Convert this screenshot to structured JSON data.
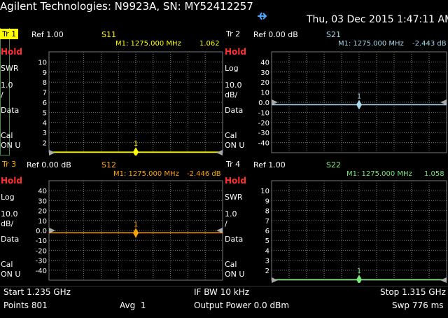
{
  "header": {
    "title": "Agilent Technologies: N9923A, SN: MY52412257",
    "datetime": "Thu, 03 Dec 2015 1:47:11 AM"
  },
  "colors": {
    "s11": "#ffff00",
    "s21": "#a8d8e8",
    "s12": "#ffa500",
    "s22": "#78e878",
    "hold": "#ff3030",
    "grid": "#888888",
    "active_tab": "#ffff00"
  },
  "panels": [
    {
      "trace": "Tr 1",
      "active": true,
      "hold": "Hold",
      "format": "SWR",
      "scale": "1.0",
      "scale_unit": "/",
      "data": "Data",
      "cal": "Cal",
      "cal_status": "ON U",
      "ref": "Ref 1.00",
      "param": "S11",
      "marker": "M1: 1275.000 MHz",
      "marker_value": "1.062",
      "marker_num": "1",
      "y_labels": [
        "10",
        "9",
        "8",
        "7",
        "6",
        "5",
        "4",
        "3",
        "2"
      ],
      "y_min": 1,
      "y_max": 11,
      "trace_value": 1.06,
      "marker_data_value": 1.062,
      "color": "#ffff00"
    },
    {
      "trace": "Tr 2",
      "active": false,
      "hold": "Hold",
      "format": "Log",
      "scale": "10.0",
      "scale_unit": "dB/",
      "data": "Data",
      "cal": "Cal",
      "cal_status": "ON U",
      "ref": "Ref 0.00 dB",
      "param": "S21",
      "marker": "M1: 1275.000 MHz",
      "marker_value": "-2.443 dB",
      "marker_num": "1",
      "y_labels": [
        "40",
        "30",
        "20",
        "10",
        "0.0",
        "-10",
        "-20",
        "-30",
        "-40"
      ],
      "y_min": -50,
      "y_max": 50,
      "trace_value": -2.4,
      "marker_data_value": -2.443,
      "color": "#a8d8e8"
    },
    {
      "trace": "Tr 3",
      "active": false,
      "hold": "Hold",
      "format": "Log",
      "scale": "10.0",
      "scale_unit": "dB/",
      "data": "Data",
      "cal": "Cal",
      "cal_status": "ON U",
      "ref": "Ref 0.00 dB",
      "param": "S12",
      "marker": "M1: 1275.000 MHz",
      "marker_value": "-2.446 dB",
      "marker_num": "1",
      "y_labels": [
        "40",
        "30",
        "20",
        "10",
        "0.0",
        "-10",
        "-20",
        "-30",
        "-40"
      ],
      "y_min": -50,
      "y_max": 50,
      "trace_value": -2.4,
      "marker_data_value": -2.446,
      "color": "#ffa500"
    },
    {
      "trace": "Tr 4",
      "active": false,
      "hold": "Hold",
      "format": "SWR",
      "scale": "1.0",
      "scale_unit": "/",
      "data": "Data",
      "cal": "Cal",
      "cal_status": "ON U",
      "ref": "Ref 1.00",
      "param": "S22",
      "marker": "M1: 1275.000 MHz",
      "marker_value": "1.058",
      "marker_num": "1",
      "y_labels": [
        "10",
        "9",
        "8",
        "7",
        "6",
        "5",
        "4",
        "3",
        "2"
      ],
      "y_min": 1,
      "y_max": 11,
      "trace_value": 1.06,
      "marker_data_value": 1.058,
      "color": "#78e878"
    }
  ],
  "footer": {
    "start": "Start 1.235 GHz",
    "ifbw": "IF BW 10 kHz",
    "stop": "Stop 1.315 GHz",
    "points": "Points 801",
    "avg": "Avg  1",
    "power": "Output Power 0.0 dBm",
    "sweep": "Swp 776 ms"
  }
}
